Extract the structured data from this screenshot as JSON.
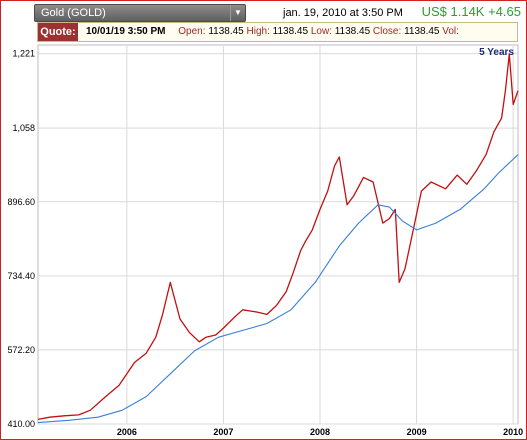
{
  "header": {
    "symbol_label": "Gold (GOLD)",
    "timestamp": "jan. 19, 2010 at 3:50 PM",
    "price_change": "US$ 1.14K +4.65",
    "dropdown_icon": "triangle-down-icon"
  },
  "quote": {
    "label": "Quote:",
    "date": "10/01/19 3:50 PM",
    "open_label": "Open:",
    "open": "1138.45",
    "high_label": "High:",
    "high": "1138.45",
    "low_label": "Low:",
    "low": "1138.45",
    "close_label": "Close:",
    "close": "1138.45",
    "vol_label": "Vol:",
    "vol": ""
  },
  "colors": {
    "price_line": "#c01010",
    "average_line": "#3b7fd6",
    "grid": "#d9d9d9",
    "frame": "#d21f1f"
  },
  "chart_data": {
    "type": "line",
    "range_label": "5 Years",
    "ylim": [
      410,
      1240
    ],
    "y_ticks": [
      {
        "value": 410,
        "label": "410.00"
      },
      {
        "value": 572.2,
        "label": "572.20"
      },
      {
        "value": 734.4,
        "label": "734.40"
      },
      {
        "value": 896.6,
        "label": "896.60"
      },
      {
        "value": 1058,
        "label": "1,058"
      },
      {
        "value": 1221,
        "label": "1,221"
      }
    ],
    "x_ticks": [
      "2006",
      "2007",
      "2008",
      "2009",
      "2010"
    ],
    "xlim": [
      2005.08,
      2010.05
    ],
    "grid": true,
    "series": [
      {
        "color": "#c01010",
        "x": [
          2005.08,
          2005.2,
          2005.35,
          2005.5,
          2005.62,
          2005.78,
          2005.92,
          2006.08,
          2006.2,
          2006.3,
          2006.37,
          2006.45,
          2006.55,
          2006.65,
          2006.75,
          2006.82,
          2006.92,
          2007.0,
          2007.12,
          2007.2,
          2007.35,
          2007.45,
          2007.55,
          2007.65,
          2007.72,
          2007.8,
          2007.85,
          2007.92,
          2008.0,
          2008.08,
          2008.15,
          2008.2,
          2008.28,
          2008.35,
          2008.45,
          2008.55,
          2008.65,
          2008.72,
          2008.78,
          2008.82,
          2008.88,
          2008.95,
          2009.05,
          2009.15,
          2009.3,
          2009.42,
          2009.52,
          2009.62,
          2009.72,
          2009.8,
          2009.88,
          2009.92,
          2009.96,
          2010.0,
          2010.05
        ],
        "values": [
          420,
          425,
          428,
          430,
          440,
          470,
          495,
          545,
          565,
          600,
          650,
          720,
          640,
          610,
          590,
          600,
          605,
          620,
          645,
          660,
          655,
          650,
          670,
          700,
          740,
          790,
          810,
          835,
          880,
          920,
          975,
          995,
          890,
          910,
          950,
          940,
          850,
          860,
          880,
          720,
          750,
          820,
          920,
          940,
          925,
          955,
          935,
          965,
          1000,
          1050,
          1080,
          1140,
          1220,
          1110,
          1140
        ]
      },
      {
        "color": "#3b7fd6",
        "x": [
          2005.08,
          2005.4,
          2005.7,
          2005.95,
          2006.2,
          2006.45,
          2006.7,
          2006.95,
          2007.2,
          2007.45,
          2007.7,
          2007.95,
          2008.2,
          2008.4,
          2008.6,
          2008.72,
          2008.85,
          2009.0,
          2009.2,
          2009.45,
          2009.7,
          2009.85,
          2010.05
        ],
        "values": [
          413,
          418,
          425,
          440,
          470,
          520,
          570,
          600,
          615,
          630,
          660,
          720,
          800,
          850,
          890,
          885,
          855,
          835,
          850,
          880,
          925,
          960,
          1000
        ]
      }
    ]
  }
}
